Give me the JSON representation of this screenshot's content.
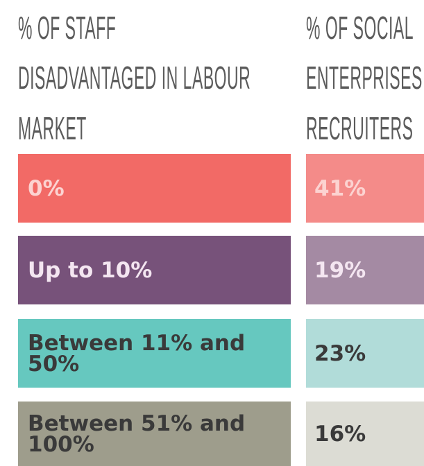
{
  "headers": {
    "left": [
      "% OF STAFF",
      "DISADVANTAGED IN LABOUR",
      "MARKET"
    ],
    "right": [
      "% OF SOCIAL",
      "ENTERPRISES",
      "RECRUITERS"
    ]
  },
  "rows": [
    {
      "label": "0%",
      "value": "41%"
    },
    {
      "label": "Up to 10%",
      "value": "19%"
    },
    {
      "label": "Between 11% and 50%",
      "value": "23%"
    },
    {
      "label": "Between 51% and 100%",
      "value": "16%"
    }
  ]
}
